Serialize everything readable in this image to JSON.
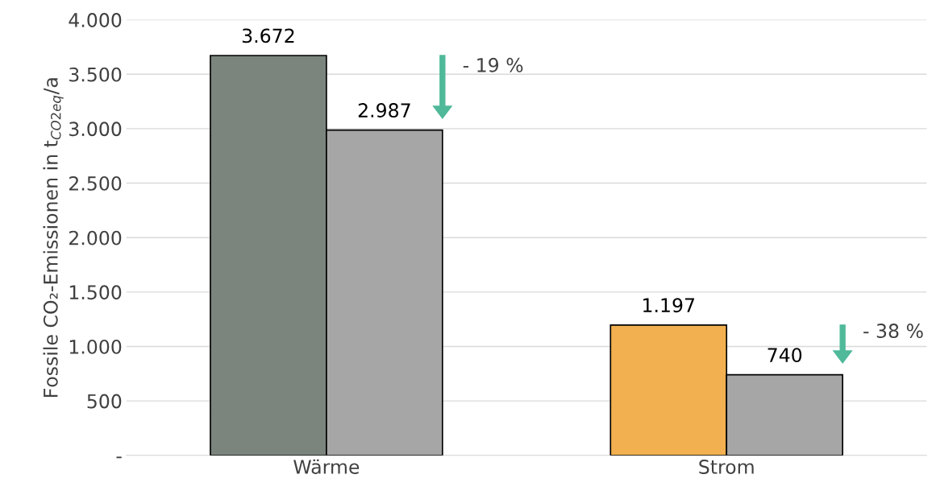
{
  "chart_data": {
    "type": "bar",
    "ylabel": "Fossile CO₂-Emissionen in t$_{CO2eq}$/a",
    "categories": [
      "Wärme",
      "Strom"
    ],
    "series": [
      {
        "colors": [
          "#7b857e",
          "#f2b050"
        ],
        "values": [
          3672,
          1197
        ],
        "value_labels": [
          "3.672",
          "1.197"
        ]
      },
      {
        "color": "#a6a6a6",
        "values": [
          2987,
          740
        ],
        "value_labels": [
          "2.987",
          "740"
        ]
      }
    ],
    "annotations": [
      "- 19 %",
      "- 38 %"
    ],
    "ylim": [
      0,
      4000
    ],
    "yticks": [
      {
        "value": 0,
        "label": "-"
      },
      {
        "value": 500,
        "label": "500"
      },
      {
        "value": 1000,
        "label": "1.000"
      },
      {
        "value": 1500,
        "label": "1.500"
      },
      {
        "value": 2000,
        "label": "2.000"
      },
      {
        "value": 2500,
        "label": "2.500"
      },
      {
        "value": 3000,
        "label": "3.000"
      },
      {
        "value": 3500,
        "label": "3.500"
      },
      {
        "value": 4000,
        "label": "4.000"
      }
    ],
    "grid": "y",
    "legend": false
  }
}
